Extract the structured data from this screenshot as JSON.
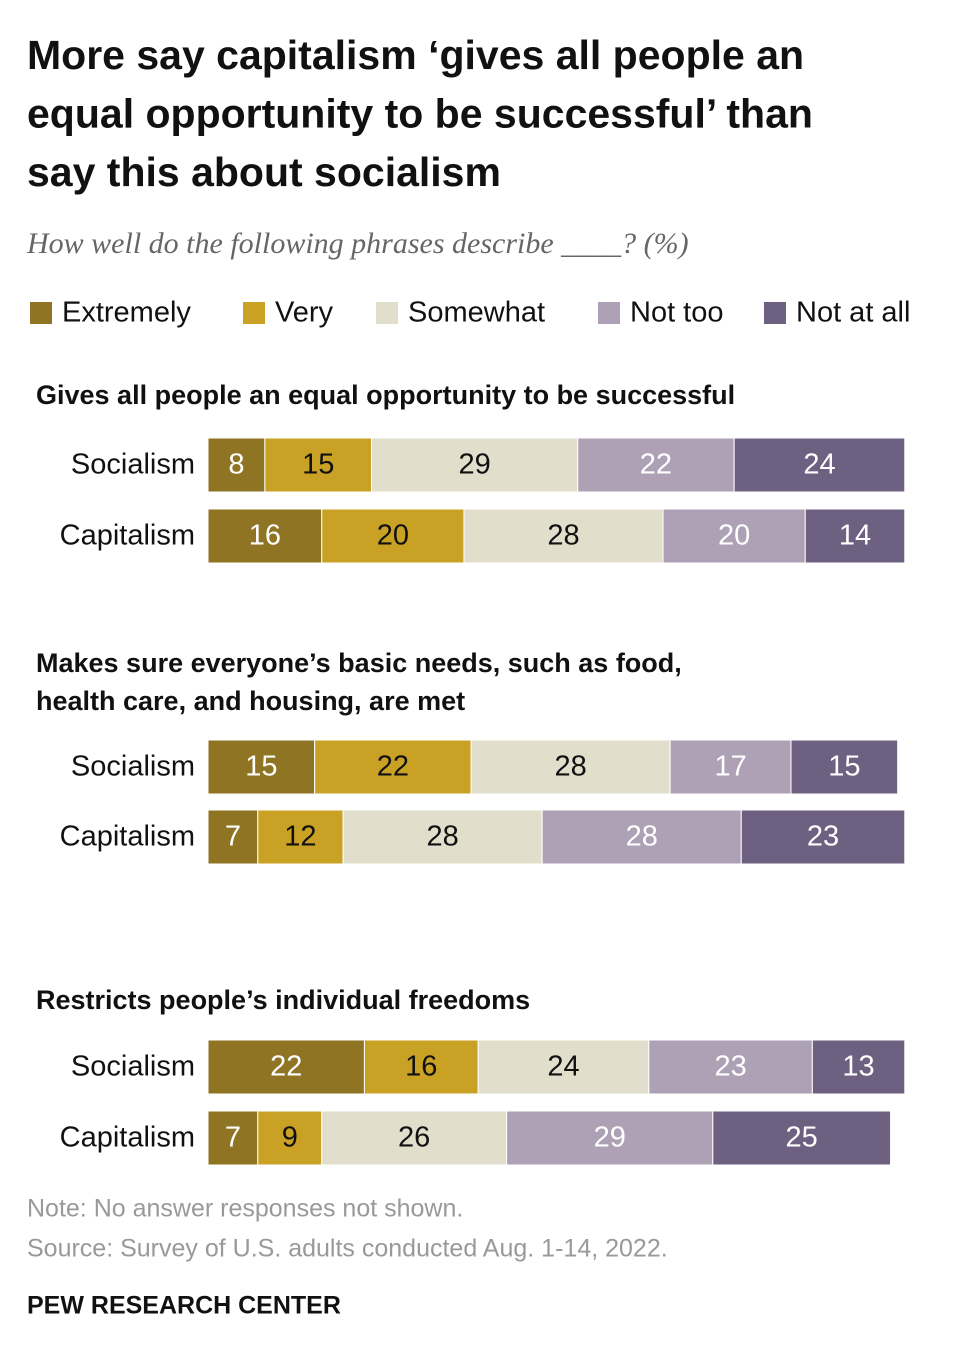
{
  "chart_data": {
    "type": "bar",
    "stacked": true,
    "orientation": "horizontal",
    "title": [
      "More say capitalism ‘gives all people an",
      "equal opportunity to be successful’ than",
      "say this about socialism"
    ],
    "subtitle": "How well do the following phrases describe ____? (%)",
    "series": [
      {
        "name": "Extremely",
        "color": "#8f7523"
      },
      {
        "name": "Very",
        "color": "#c9a225"
      },
      {
        "name": "Somewhat",
        "color": "#e1dfcc"
      },
      {
        "name": "Not too",
        "color": "#aea1b6"
      },
      {
        "name": "Not at all",
        "color": "#6e6080"
      }
    ],
    "panels": [
      {
        "title": [
          "Gives all people an equal opportunity to be successful"
        ],
        "categories": [
          "Socialism",
          "Capitalism"
        ],
        "values": [
          [
            8,
            15,
            29,
            22,
            24
          ],
          [
            16,
            20,
            28,
            20,
            14
          ]
        ]
      },
      {
        "title": [
          "Makes sure everyone’s basic needs, such as food,",
          "health care, and housing, are met"
        ],
        "categories": [
          "Socialism",
          "Capitalism"
        ],
        "values": [
          [
            15,
            22,
            28,
            17,
            15
          ],
          [
            7,
            12,
            28,
            28,
            23
          ]
        ]
      },
      {
        "title": [
          "Restricts people’s individual freedoms"
        ],
        "categories": [
          "Socialism",
          "Capitalism"
        ],
        "values": [
          [
            22,
            16,
            24,
            23,
            13
          ],
          [
            7,
            9,
            26,
            29,
            25
          ]
        ]
      }
    ],
    "note": "Note: No answer responses not shown.",
    "source": "Source: Survey of U.S. adults conducted Aug. 1-14, 2022.",
    "credit": "PEW RESEARCH CENTER"
  }
}
